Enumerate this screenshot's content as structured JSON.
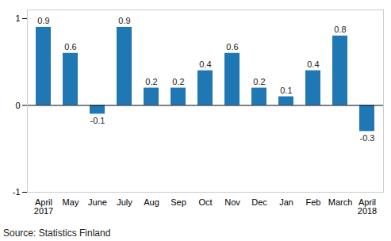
{
  "chart_data": {
    "type": "bar",
    "categories": [
      "April\n2017",
      "May",
      "June",
      "July",
      "Aug",
      "Sep",
      "Oct",
      "Nov",
      "Dec",
      "Jan",
      "Feb",
      "March",
      "April\n2018"
    ],
    "values": [
      0.9,
      0.6,
      -0.1,
      0.9,
      0.2,
      0.2,
      0.4,
      0.6,
      0.2,
      0.1,
      0.4,
      0.8,
      -0.3
    ],
    "color": "#1f78b4",
    "ylim": [
      -1,
      1.1
    ],
    "yticks": [
      -1,
      0,
      1
    ],
    "grid": false,
    "data_labels": true,
    "caption": "Source: Statistics Finland"
  }
}
